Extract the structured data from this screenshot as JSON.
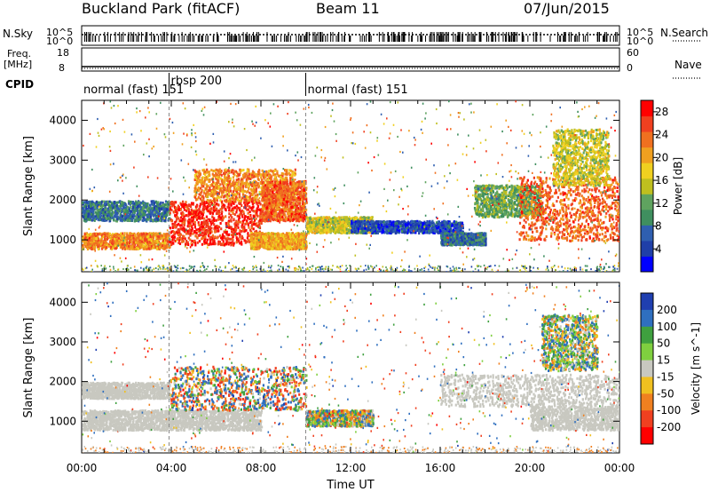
{
  "header": {
    "station": "Buckland Park (fitACF)",
    "beam": "Beam 11",
    "date": "07/Jun/2015"
  },
  "strips": {
    "nsky_label": "N.Sky",
    "nsearch_label": "N.Search",
    "freq_label_line1": "Freq.",
    "freq_label_line2": "[MHz]",
    "nave_label": "Nave",
    "cpid_label": "CPID",
    "exp_ticks_left": [
      "10^5",
      "10^0"
    ],
    "exp_ticks_right": [
      "10^5",
      "10^0"
    ],
    "freq_ticks": [
      "18",
      "8"
    ],
    "nave_ticks": [
      "60",
      "0"
    ]
  },
  "cpid": {
    "segments": [
      {
        "start_hour": 0,
        "end_hour": 3.9,
        "label": "normal (fast) 151"
      },
      {
        "start_hour": 3.9,
        "end_hour": 10.0,
        "label": "rbsp 200"
      },
      {
        "start_hour": 10.0,
        "end_hour": 24,
        "label": "normal (fast) 151"
      }
    ]
  },
  "chart_data": [
    {
      "type": "heatmap",
      "panel": "power",
      "ylabel": "Slant Range [km]",
      "xlabel": "Time UT",
      "xlim": [
        0,
        24
      ],
      "ylim": [
        200,
        4500
      ],
      "x_ticks": [
        "00:00",
        "04:00",
        "08:00",
        "12:00",
        "16:00",
        "20:00",
        "00:00"
      ],
      "y_ticks": [
        1000,
        2000,
        3000,
        4000
      ],
      "colorbar": {
        "label": "Power [dB]",
        "ticks": [
          4,
          8,
          12,
          16,
          20,
          24,
          28
        ],
        "range": [
          0,
          30
        ],
        "colors": [
          "#0000ff",
          "#1f3fa8",
          "#2f5fb0",
          "#3f8f5f",
          "#5fa35f",
          "#bfbf1f",
          "#f0d020",
          "#f0a020",
          "#f07020",
          "#f04020",
          "#ff0000"
        ]
      },
      "regions": [
        {
          "t0": 0.0,
          "t1": 3.9,
          "r0": 800,
          "r1": 1200,
          "value": 22
        },
        {
          "t0": 0.0,
          "t1": 3.9,
          "r0": 1500,
          "r1": 2000,
          "value": 8
        },
        {
          "t0": 3.9,
          "t1": 8.0,
          "r0": 900,
          "r1": 2000,
          "value": 27
        },
        {
          "t0": 5.0,
          "t1": 9.5,
          "r0": 2000,
          "r1": 2800,
          "value": 22
        },
        {
          "t0": 7.5,
          "t1": 10.0,
          "r0": 800,
          "r1": 1200,
          "value": 20
        },
        {
          "t0": 8.0,
          "t1": 10.0,
          "r0": 1500,
          "r1": 2500,
          "value": 24
        },
        {
          "t0": 10.0,
          "t1": 13.0,
          "r0": 1200,
          "r1": 1600,
          "value": 16
        },
        {
          "t0": 12.0,
          "t1": 17.0,
          "r0": 1200,
          "r1": 1500,
          "value": 5
        },
        {
          "t0": 16.0,
          "t1": 18.0,
          "r0": 900,
          "r1": 1200,
          "value": 8
        },
        {
          "t0": 17.5,
          "t1": 20.5,
          "r0": 1600,
          "r1": 2400,
          "value": 12
        },
        {
          "t0": 19.5,
          "t1": 24.0,
          "r0": 1000,
          "r1": 2600,
          "value": 24
        },
        {
          "t0": 21.0,
          "t1": 23.5,
          "r0": 2400,
          "r1": 3800,
          "value": 16
        }
      ]
    },
    {
      "type": "heatmap",
      "panel": "velocity",
      "ylabel": "Slant Range [km]",
      "xlabel": "Time UT",
      "xlim": [
        0,
        24
      ],
      "ylim": [
        200,
        4500
      ],
      "x_ticks": [
        "00:00",
        "04:00",
        "08:00",
        "12:00",
        "16:00",
        "20:00",
        "00:00"
      ],
      "y_ticks": [
        1000,
        2000,
        3000,
        4000
      ],
      "colorbar": {
        "label": "Velocity [m s^-1]",
        "ticks": [
          200,
          100,
          50,
          15,
          -15,
          -50,
          -100,
          -200
        ],
        "colors": [
          "#1f3fb0",
          "#2f6fbf",
          "#3fa03f",
          "#7fcf3f",
          "#c8c8c0",
          "#f0c020",
          "#f08020",
          "#f04020",
          "#ff0000"
        ]
      },
      "regions": [
        {
          "t0": 0.0,
          "t1": 3.9,
          "r0": 800,
          "r1": 1300,
          "value": 0
        },
        {
          "t0": 0.0,
          "t1": 3.9,
          "r0": 1600,
          "r1": 2000,
          "value": 0
        },
        {
          "t0": 3.9,
          "t1": 8.0,
          "r0": 800,
          "r1": 1300,
          "value": 0
        },
        {
          "t0": 3.9,
          "t1": 10.0,
          "r0": 1300,
          "r1": 2400,
          "value": -60
        },
        {
          "t0": 10.0,
          "t1": 13.0,
          "r0": 900,
          "r1": 1300,
          "value": 20
        },
        {
          "t0": 16.0,
          "t1": 24.0,
          "r0": 1400,
          "r1": 2200,
          "value": 0
        },
        {
          "t0": 20.0,
          "t1": 24.0,
          "r0": 800,
          "r1": 1400,
          "value": 0
        },
        {
          "t0": 20.5,
          "t1": 23.0,
          "r0": 2300,
          "r1": 3700,
          "value": 40
        }
      ]
    }
  ]
}
